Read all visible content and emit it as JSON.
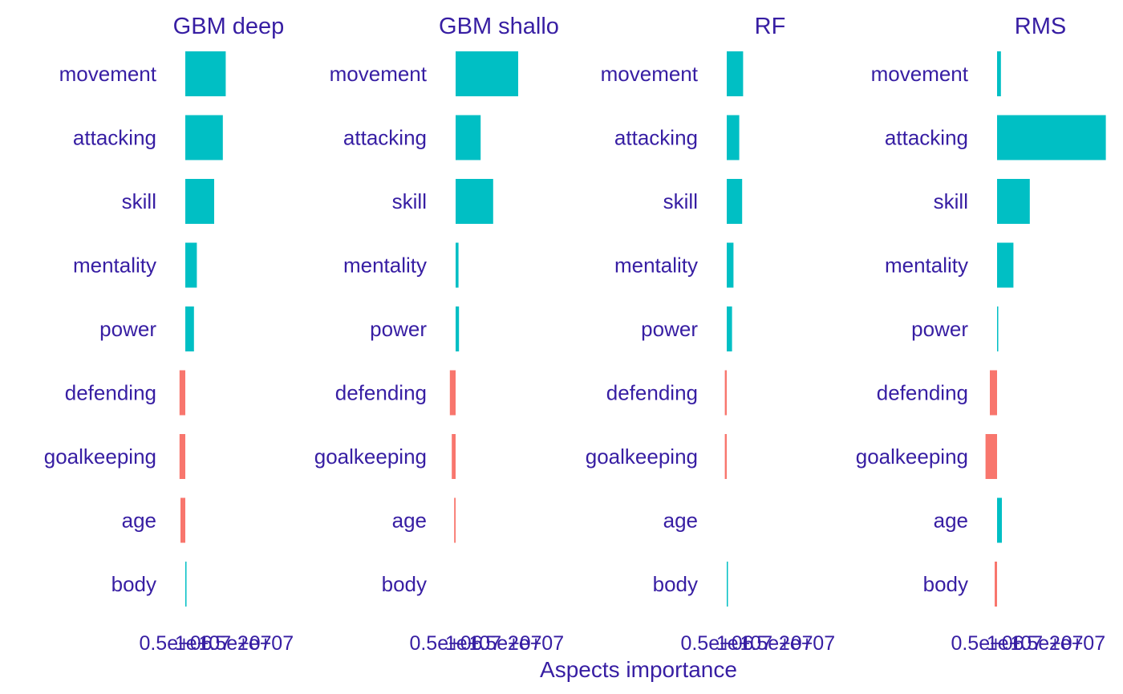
{
  "chart_data": {
    "type": "bar",
    "orientation": "horizontal",
    "xlabel": "Aspects importance",
    "categories": [
      "movement",
      "attacking",
      "skill",
      "mentality",
      "power",
      "defending",
      "goalkeeping",
      "age",
      "body"
    ],
    "tick_labels": [
      "0.5e+06",
      "1e+07",
      "1.5e+07",
      "2e+07"
    ],
    "panels": [
      {
        "title": "GBM deep",
        "title_display": "GBM deep",
        "values": [
          4200000.0,
          3900000.0,
          3000000.0,
          1200000.0,
          900000.0,
          -600000.0,
          -600000.0,
          -500000.0,
          50000.0
        ]
      },
      {
        "title": "GBM shallow",
        "title_display": "GBM shallo",
        "values": [
          6500000.0,
          2600000.0,
          3900000.0,
          300000.0,
          350000.0,
          -600000.0,
          -400000.0,
          -150000.0,
          0.0
        ]
      },
      {
        "title": "RF",
        "title_display": "RF",
        "values": [
          1700000.0,
          1300000.0,
          1600000.0,
          700000.0,
          550000.0,
          -200000.0,
          -200000.0,
          0.0,
          100000.0
        ]
      },
      {
        "title": "RMS",
        "title_display": "RMS",
        "values": [
          400000.0,
          11300000.0,
          3400000.0,
          1700000.0,
          120000.0,
          -750000.0,
          -1200000.0,
          500000.0,
          -250000.0
        ]
      }
    ],
    "colors": {
      "positive": "#00BFC4",
      "negative": "#F8766D",
      "text": "#371EA3"
    },
    "grid": false,
    "legend": "none"
  }
}
